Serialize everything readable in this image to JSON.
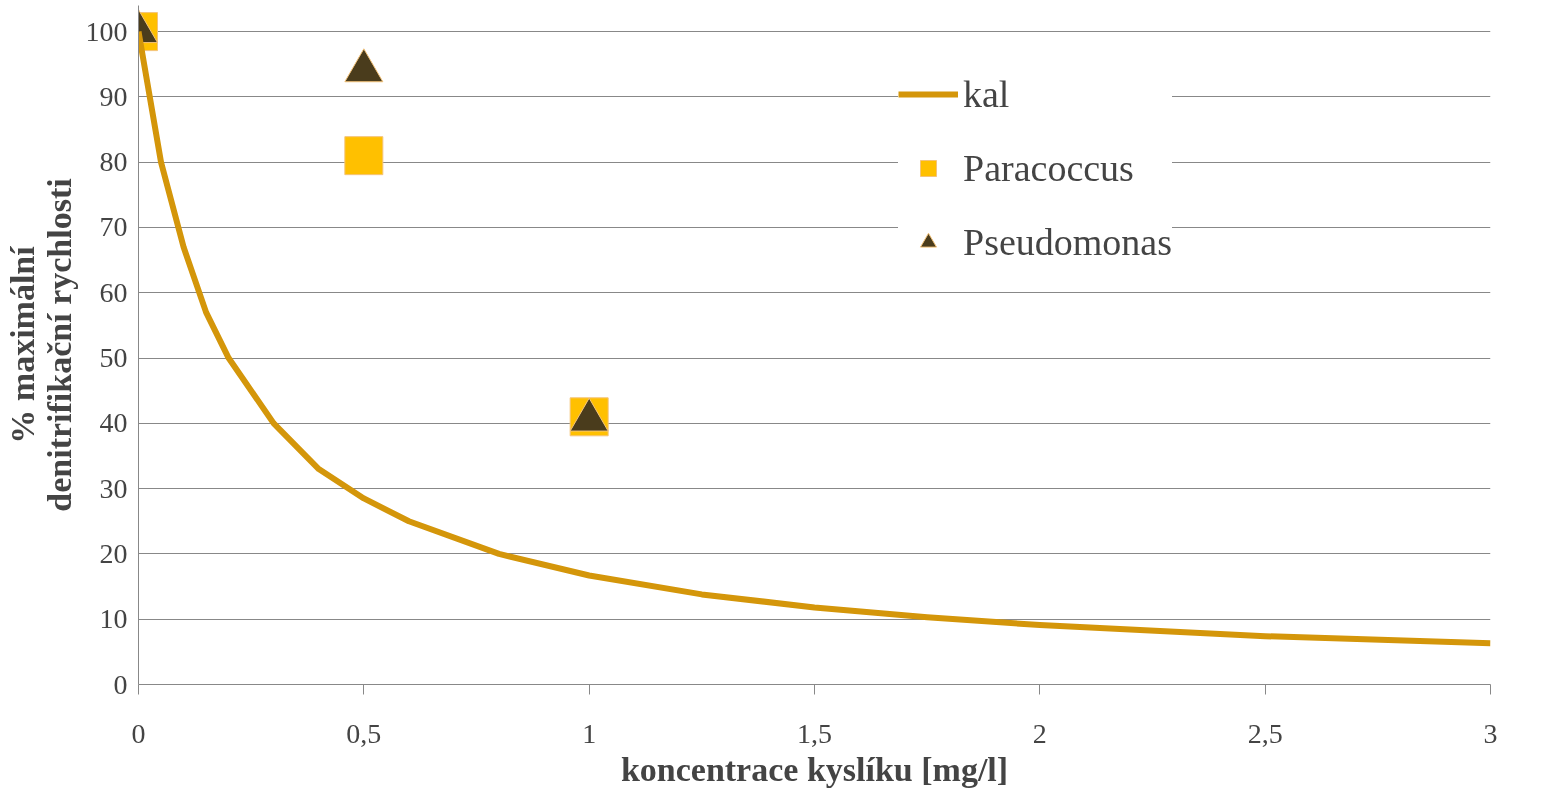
{
  "chart_data": {
    "type": "line",
    "xlabel": "koncentrace kyslíku [mg/l]",
    "ylabel": "% maximální\ndenitrifikační rychlosti",
    "xlim": [
      0,
      3
    ],
    "ylim": [
      0,
      104
    ],
    "xticks": [
      0,
      {
        "value": 0.5,
        "label": "0,5"
      },
      1,
      {
        "value": 1.5,
        "label": "1,5"
      },
      2,
      {
        "value": 2.5,
        "label": "2,5"
      },
      3
    ],
    "yticks": [
      0,
      10,
      20,
      30,
      40,
      50,
      60,
      70,
      80,
      90,
      100
    ],
    "grid": "y",
    "legend": "top right",
    "series": [
      {
        "name": "kal",
        "color": "#d4960a",
        "line_style": "solid",
        "x": [
          0,
          0.05,
          0.1,
          0.15,
          0.2,
          0.3,
          0.4,
          0.5,
          0.6,
          0.8,
          1,
          1.25,
          1.5,
          1.75,
          2,
          2.5,
          3
        ],
        "values": [
          100,
          80,
          67,
          57,
          50,
          40,
          33,
          28.5,
          25,
          20,
          16.7,
          13.8,
          11.8,
          10.3,
          9.1,
          7.4,
          6.3
        ]
      },
      {
        "name": "Paracoccus",
        "type": "scatter",
        "marker": "square",
        "color": "#ffc000",
        "x": [
          0,
          0.5,
          1
        ],
        "values": [
          100,
          81,
          41
        ]
      },
      {
        "name": "Pseudomonas",
        "type": "scatter",
        "marker": "triangle",
        "color": "#4a3c1c",
        "x": [
          0,
          0.5,
          1
        ],
        "values": [
          100,
          94,
          40.5
        ]
      }
    ]
  }
}
